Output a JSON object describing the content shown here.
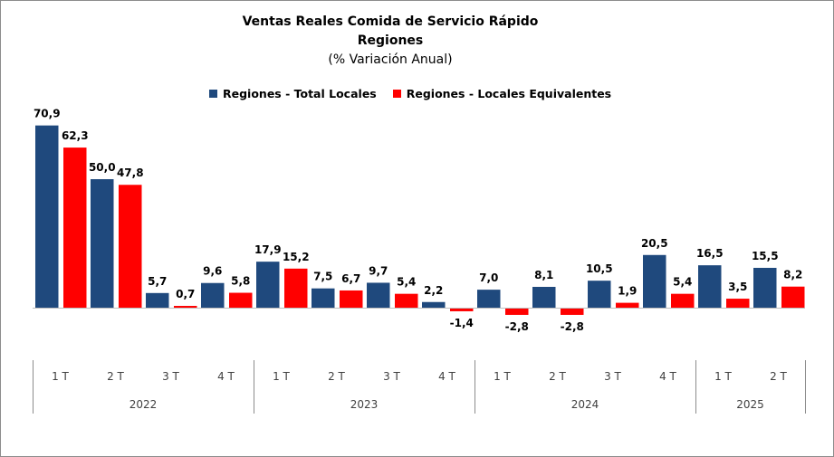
{
  "chart_data": {
    "type": "bar",
    "title": "Ventas Reales Comida de Servicio Rápido",
    "subtitle": "Regiones",
    "subtitle2": "(% Variación Anual)",
    "legend_position": "top",
    "grid": false,
    "categories": [
      "1 T",
      "2 T",
      "3 T",
      "4 T",
      "1 T",
      "2 T",
      "3 T",
      "4 T",
      "1 T",
      "2 T",
      "3 T",
      "4 T",
      "1 T",
      "2 T"
    ],
    "years": [
      {
        "label": "2022",
        "count": 4
      },
      {
        "label": "2023",
        "count": 4
      },
      {
        "label": "2024",
        "count": 4
      },
      {
        "label": "2025",
        "count": 2
      }
    ],
    "series": [
      {
        "name": "Regiones - Total Locales",
        "color": "#1f497d",
        "values": [
          70.9,
          50.0,
          5.7,
          9.6,
          17.9,
          7.5,
          9.7,
          2.2,
          7.0,
          8.1,
          10.5,
          20.5,
          16.5,
          15.5
        ],
        "labels": [
          "70,9",
          "50,0",
          "5,7",
          "9,6",
          "17,9",
          "7,5",
          "9,7",
          "2,2",
          "7,0",
          "8,1",
          "10,5",
          "20,5",
          "16,5",
          "15,5"
        ]
      },
      {
        "name": "Regiones - Locales Equivalentes",
        "color": "#ff0000",
        "values": [
          62.3,
          47.8,
          0.7,
          5.8,
          15.2,
          6.7,
          5.4,
          -1.4,
          -2.8,
          -2.8,
          1.9,
          5.4,
          3.5,
          8.2
        ],
        "labels": [
          "62,3",
          "47,8",
          "0,7",
          "5,8",
          "15,2",
          "6,7",
          "5,4",
          "-1,4",
          "-2,8",
          "-2,8",
          "1,9",
          "5,4",
          "3,5",
          "8,2"
        ]
      }
    ]
  }
}
